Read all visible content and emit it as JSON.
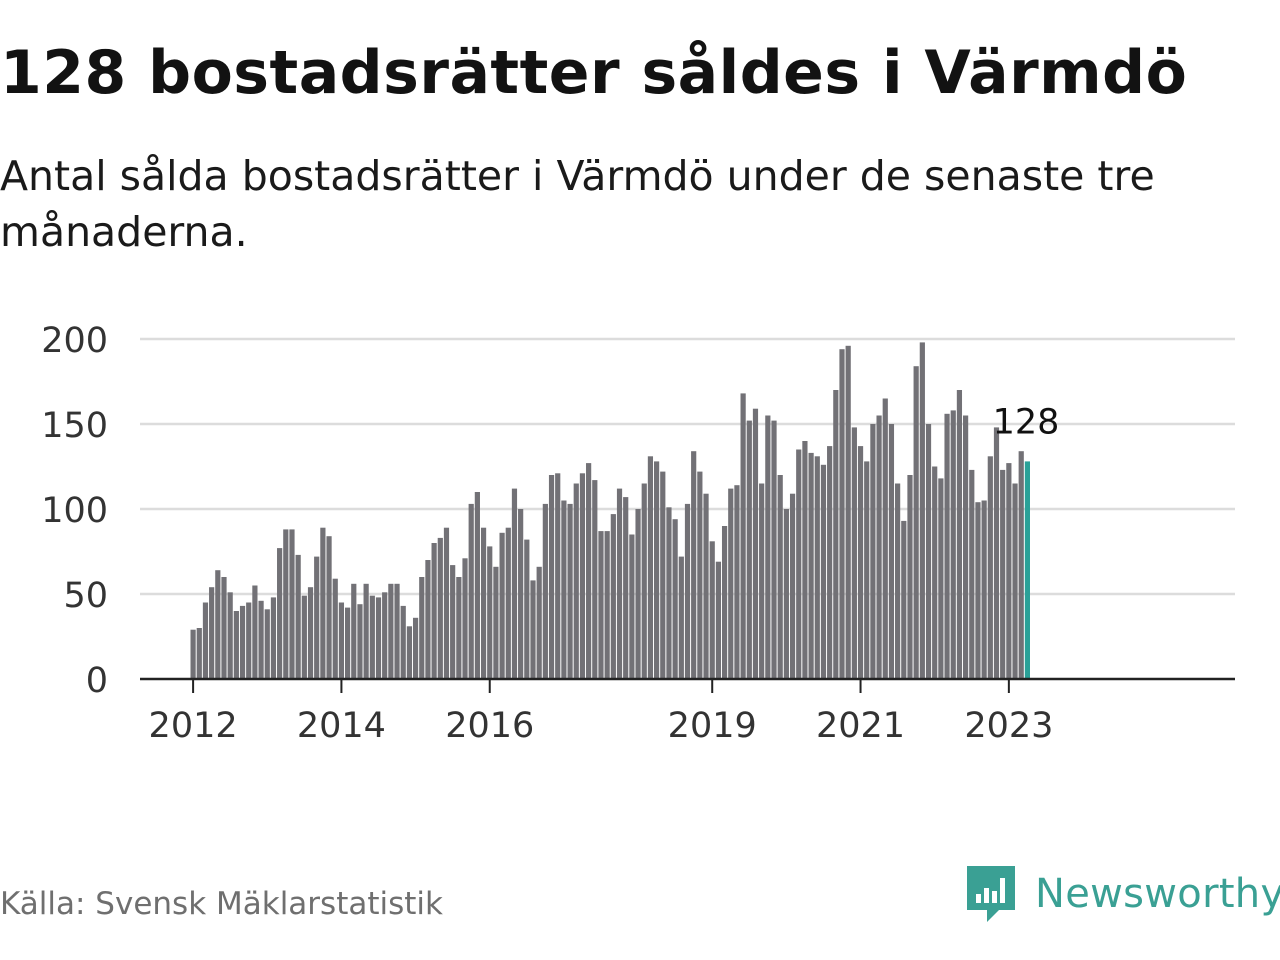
{
  "title": "128 bostadsrätter såldes i Värmdö",
  "subtitle": "Antal sålda bostadsrätter i Värmdö under de senaste tre månaderna.",
  "source": "Källa: Svensk Mäklarstatistik",
  "brand": {
    "name": "Newsworthy",
    "icon": "newsworthy-logo-icon"
  },
  "colors": {
    "bar": "#727176",
    "highlight": "#2aa198",
    "grid": "#dcdcdc",
    "axis": "#222222",
    "brand": "#3aa094"
  },
  "chart_data": {
    "type": "bar",
    "title": "128 bostadsrätter såldes i Värmdö",
    "xlabel": "",
    "ylabel": "",
    "ylim": [
      0,
      200
    ],
    "yticks": [
      0,
      50,
      100,
      150,
      200
    ],
    "grid": true,
    "start": "2012-01",
    "xtick_labels": [
      {
        "label": "2012",
        "index": 0
      },
      {
        "label": "2014",
        "index": 24
      },
      {
        "label": "2016",
        "index": 48
      },
      {
        "label": "2019",
        "index": 84
      },
      {
        "label": "2021",
        "index": 108
      },
      {
        "label": "2023",
        "index": 132
      }
    ],
    "values": [
      29,
      30,
      45,
      54,
      64,
      60,
      51,
      40,
      43,
      45,
      55,
      46,
      41,
      48,
      77,
      88,
      88,
      73,
      49,
      54,
      72,
      89,
      84,
      59,
      45,
      42,
      56,
      44,
      56,
      49,
      48,
      51,
      56,
      56,
      43,
      31,
      36,
      60,
      70,
      80,
      83,
      89,
      67,
      60,
      71,
      103,
      110,
      89,
      78,
      66,
      86,
      89,
      112,
      100,
      82,
      58,
      66,
      103,
      120,
      121,
      105,
      103,
      115,
      121,
      127,
      117,
      87,
      87,
      97,
      112,
      107,
      85,
      100,
      115,
      131,
      128,
      122,
      101,
      94,
      72,
      103,
      134,
      122,
      109,
      81,
      69,
      90,
      112,
      114,
      168,
      152,
      159,
      115,
      155,
      152,
      120,
      100,
      109,
      135,
      140,
      133,
      131,
      126,
      137,
      170,
      194,
      196,
      148,
      137,
      128,
      150,
      155,
      165,
      150,
      115,
      93,
      120,
      184,
      198,
      150,
      125,
      118,
      156,
      158,
      170,
      155,
      123,
      104,
      105,
      131,
      148,
      123,
      127,
      115,
      134,
      128
    ],
    "highlight_index": 135,
    "highlight_label": "128"
  }
}
